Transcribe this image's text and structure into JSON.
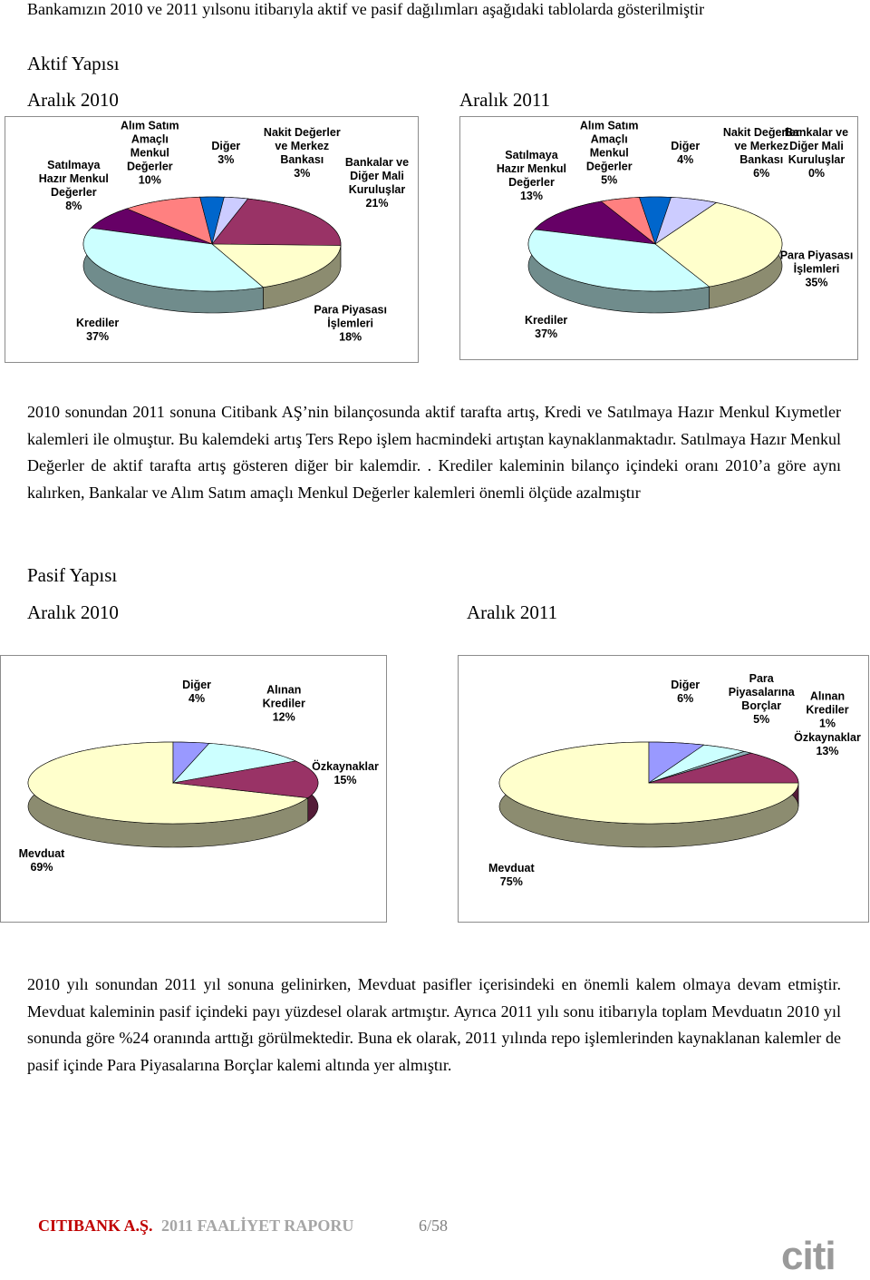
{
  "intro": "Bankamızın 2010 ve 2011 yılsonu itibarıyla aktif ve pasif dağılımları aşağıdaki tablolarda gösterilmiştir",
  "aktif_heading": "Aktif Yapısı",
  "aktif_paragraph": "2010 sonundan 2011 sonuna Citibank AŞ’nin bilançosunda aktif tarafta artış, Kredi ve Satılmaya Hazır Menkul Kıymetler kalemleri ile olmuştur. Bu kalemdeki artış Ters Repo işlem hacmindeki artıştan kaynaklanmaktadır. Satılmaya Hazır Menkul Değerler de aktif tarafta  artış gösteren diğer bir kalemdir. . Krediler kaleminin bilanço içindeki oranı 2010’a göre aynı kalırken, Bankalar ve Alım Satım amaçlı Menkul Değerler kalemleri önemli ölçüde azalmıştır",
  "pasif_heading": "Pasif Yapısı",
  "pasif_paragraph": "2010 yılı sonundan 2011 yıl sonuna gelinirken, Mevduat  pasifler içerisindeki en önemli kalem olmaya devam etmiştir. Mevduat kaleminin pasif içindeki payı yüzdesel olarak artmıştır. Ayrıca 2011 yılı sonu itibarıyla toplam Mevduatın 2010 yıl sonunda göre %24 oranında arttığı görülmektedir. Buna ek olarak, 2011 yılında repo işlemlerinden kaynaklanan kalemler de pasif içinde Para Piyasalarına Borçlar kalemi altında yer almıştır.",
  "footer": {
    "company": "CITIBANK A.Ş.",
    "report": "2011 FAALİYET RAPORU",
    "page": "6/58",
    "logo": "citi"
  },
  "chart_data": [
    {
      "type": "pie",
      "title": "Aralık 2010",
      "categories": [
        "Satılmaya Hazır Menkul Değerler",
        "Alım Satım Amaçlı Menkul Değerler",
        "Diğer",
        "Nakit Değerler ve Merkez Bankası",
        "Bankalar ve Diğer Mali Kuruluşlar",
        "Para Piyasası İşlemleri",
        "Krediler"
      ],
      "values": [
        8,
        10,
        3,
        3,
        21,
        18,
        37
      ],
      "value_labels": [
        "8%",
        "10%",
        "3%",
        "3%",
        "21%",
        "18%",
        "37%"
      ],
      "colors": [
        "#660066",
        "#ff8080",
        "#0066cc",
        "#ccccff",
        "#993366",
        "#ffffcc",
        "#ccffff"
      ]
    },
    {
      "type": "pie",
      "title": "Aralık 2011",
      "categories": [
        "Satılmaya Hazır Menkul Değerler",
        "Alım Satım Amaçlı Menkul Değerler",
        "Diğer",
        "Nakit Değerler ve Merkez Bankası",
        "Bankalar ve Diğer Mali Kuruluşlar",
        "Para Piyasası İşlemleri",
        "Krediler"
      ],
      "values": [
        13,
        5,
        4,
        6,
        0,
        35,
        37
      ],
      "value_labels": [
        "13%",
        "5%",
        "4%",
        "6%",
        "0%",
        "35%",
        "37%"
      ],
      "colors": [
        "#660066",
        "#ff8080",
        "#0066cc",
        "#ccccff",
        "#993366",
        "#ffffcc",
        "#ccffff"
      ]
    },
    {
      "type": "pie",
      "title": "Aralık 2010",
      "categories": [
        "Mevduat",
        "Diğer",
        "Alınan Krediler",
        "Özkaynaklar"
      ],
      "values": [
        69,
        4,
        12,
        15
      ],
      "value_labels": [
        "69%",
        "4%",
        "12%",
        "15%"
      ],
      "colors": [
        "#ffffcc",
        "#9999ff",
        "#ccffff",
        "#993366"
      ]
    },
    {
      "type": "pie",
      "title": "Aralık 2011",
      "categories": [
        "Mevduat",
        "Diğer",
        "Para Piyasalarına Borçlar",
        "Alınan Krediler",
        "Özkaynaklar"
      ],
      "values": [
        75,
        6,
        5,
        1,
        13
      ],
      "value_labels": [
        "75%",
        "6%",
        "5%",
        "1%",
        "13%"
      ],
      "colors": [
        "#ffffcc",
        "#9999ff",
        "#ccffff",
        "#8fb0b8",
        "#993366"
      ]
    }
  ]
}
